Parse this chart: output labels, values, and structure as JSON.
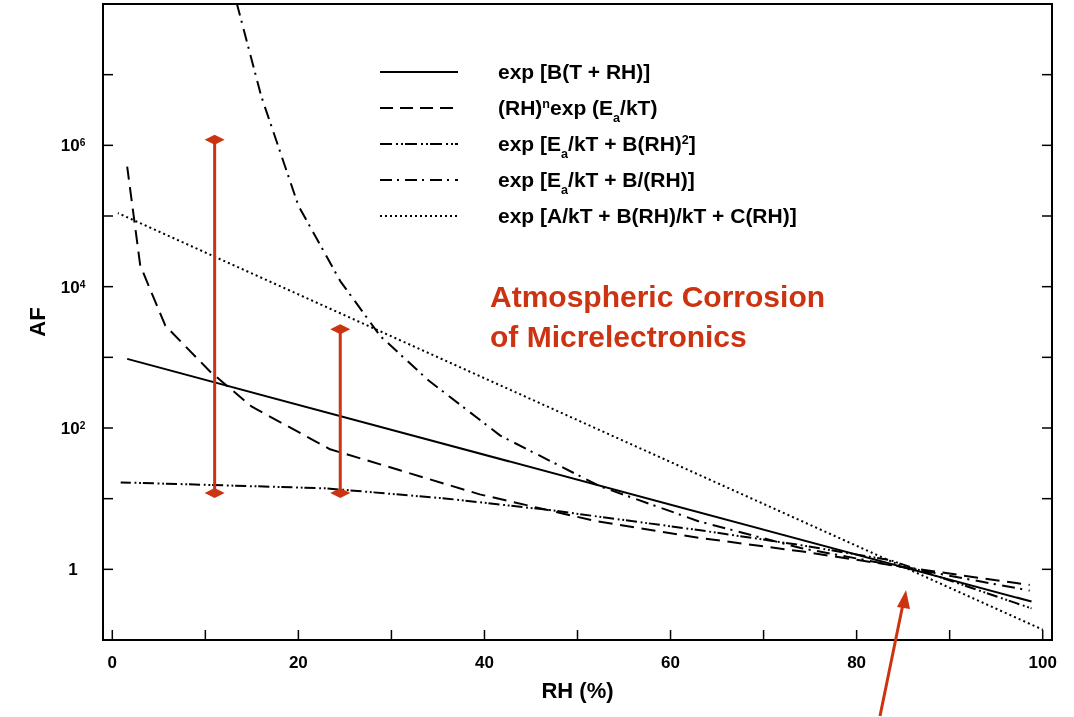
{
  "chart_data": {
    "type": "line",
    "xlabel": "RH (%)",
    "ylabel": "AF",
    "log": "y",
    "grid": false,
    "legend": "top right",
    "marker": "none",
    "xlim": [
      -1,
      101
    ],
    "ylim": [
      0.1,
      100000000
    ],
    "xticks": [
      0,
      {
        "value": 10,
        "label": null
      },
      20,
      {
        "value": 30,
        "label": null
      },
      40,
      {
        "value": 50,
        "label": null
      },
      60,
      {
        "value": 70,
        "label": null
      },
      80,
      {
        "value": 90,
        "label": null
      },
      100
    ],
    "yticks": [
      1,
      {
        "value": 10,
        "label": null
      },
      {
        "value": 100,
        "label": "10$^{2}$"
      },
      {
        "value": 1000,
        "label": null
      },
      {
        "value": 10000,
        "label": "10$^{4}$"
      },
      {
        "value": 100000,
        "label": null
      },
      {
        "value": 1000000,
        "label": "10$^{6}$"
      },
      {
        "value": 10000000,
        "label": null
      }
    ],
    "series": [
      {
        "name": "exp [B(T + RH)]",
        "color": "#000000",
        "line_style": "solid",
        "x": [
          1.6,
          98.8
        ],
        "values": [
          950,
          0.35
        ]
      },
      {
        "name": "(RH)$^{n}$exp (E$_{a}$/kT)",
        "color": "#000000",
        "line_style": "dashed",
        "x": [
          1.6,
          3,
          5.7,
          10.5,
          15,
          23.4,
          31,
          39.5,
          52,
          63,
          74,
          84.6,
          98.6
        ],
        "values": [
          500000,
          20000,
          2800,
          630,
          200,
          50,
          25,
          11.5,
          4.8,
          2.8,
          1.8,
          1.1,
          0.6
        ]
      },
      {
        "name": "exp [E$_{a}$/kT + B(RH)$^{2}$]",
        "color": "#000000",
        "line_style": "dashdotdot",
        "x": [
          0.9,
          23,
          36,
          47,
          63,
          74,
          83.6,
          98.8
        ],
        "values": [
          17,
          14,
          10,
          6.9,
          3.6,
          2.2,
          1.35,
          0.28
        ]
      },
      {
        "name": "exp [E$_{a}$/kT + B/(RH)]",
        "color": "#000000",
        "line_style": "dashdot",
        "x": [
          13.4,
          16,
          20,
          24.5,
          28.8,
          34,
          41.7,
          52.4,
          63,
          74,
          84.6,
          98.6
        ],
        "values": [
          100000000,
          5000000,
          140000,
          12000,
          2000,
          470,
          78,
          15,
          4.8,
          2,
          1.1,
          0.5
        ]
      },
      {
        "name": "exp [A/kT + B(RH)/kT + C(RH)]",
        "color": "#000000",
        "line_style": "dotted",
        "x": [
          0.6,
          100
        ],
        "values": [
          110000,
          0.14
        ]
      },
      {
        "color": "#cc3311",
        "line_style": "solid",
        "marker": "diamond",
        "x": [
          11,
          11
        ],
        "values": [
          12,
          1200000
        ]
      },
      {
        "color": "#cc3311",
        "line_style": "solid",
        "marker": "diamond",
        "x": [
          24.5,
          24.5
        ],
        "values": [
          12,
          2500
        ]
      }
    ],
    "annotations": [
      "Atmospheric Corrosion\nof Micrelectronics"
    ]
  }
}
